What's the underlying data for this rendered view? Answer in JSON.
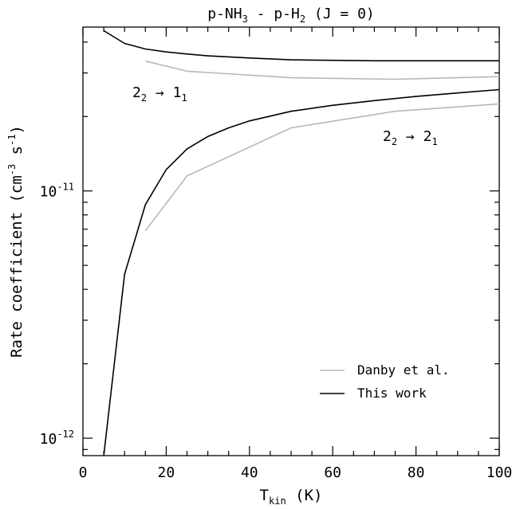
{
  "chart_data": {
    "type": "line",
    "title": {
      "main": "p-NH",
      "sub1": "3",
      "mid": " - p-H",
      "sub2": "2",
      "tail": " (J = 0)"
    },
    "xlabel": {
      "main": "T",
      "sub": "kin",
      "tail": " (K)"
    },
    "ylabel": {
      "main": "Rate coefficient (cm",
      "sup1": "-3",
      "mid": " s",
      "sup2": "-1",
      "tail": ")"
    },
    "xlim": [
      0,
      100
    ],
    "ylim": [
      8.5e-13,
      4.6e-11
    ],
    "yscale": "log",
    "xticks": [
      0,
      20,
      40,
      60,
      80,
      100
    ],
    "xtick_labels": [
      "0",
      "20",
      "40",
      "60",
      "80",
      "100"
    ],
    "ytick_labels": [
      {
        "value": 1e-11,
        "base": "10",
        "exp": "-11"
      },
      {
        "value": 1e-12,
        "base": "10",
        "exp": "-12"
      }
    ],
    "legend_position": "bottom-right",
    "annotations": [
      {
        "main": "2",
        "sub1": "2",
        "arrow": " → ",
        "main2": "1",
        "sub2": "1"
      },
      {
        "main": "2",
        "sub1": "2",
        "arrow": " → ",
        "main2": "2",
        "sub2": "1"
      }
    ],
    "series": [
      {
        "name": "Danby et al.",
        "transition": 0,
        "color": "#b8b8b8",
        "x": [
          15,
          25,
          50,
          75,
          100
        ],
        "y": [
          3.35e-11,
          3.05e-11,
          2.87e-11,
          2.83e-11,
          2.9e-11
        ]
      },
      {
        "name": "This work",
        "transition": 0,
        "color": "#000000",
        "x": [
          5,
          10,
          15,
          20,
          25,
          30,
          40,
          50,
          70,
          100
        ],
        "y": [
          4.45e-11,
          3.95e-11,
          3.75e-11,
          3.65e-11,
          3.58e-11,
          3.52e-11,
          3.45e-11,
          3.39e-11,
          3.36e-11,
          3.36e-11
        ]
      },
      {
        "name": "Danby et al.",
        "transition": 1,
        "color": "#b8b8b8",
        "x": [
          15,
          25,
          50,
          75,
          100
        ],
        "y": [
          6.9e-12,
          1.15e-11,
          1.8e-11,
          2.1e-11,
          2.25e-11
        ]
      },
      {
        "name": "This work",
        "transition": 1,
        "color": "#000000",
        "x": [
          5,
          10,
          15,
          20,
          25,
          30,
          35,
          40,
          50,
          60,
          70,
          80,
          90,
          100
        ],
        "y": [
          8.5e-13,
          4.6e-12,
          8.8e-12,
          1.22e-11,
          1.48e-11,
          1.66e-11,
          1.8e-11,
          1.92e-11,
          2.1e-11,
          2.22e-11,
          2.32e-11,
          2.41e-11,
          2.49e-11,
          2.57e-11
        ]
      }
    ],
    "legend": [
      {
        "label": "Danby et al.",
        "color": "#b8b8b8"
      },
      {
        "label": "This work",
        "color": "#000000"
      }
    ]
  }
}
